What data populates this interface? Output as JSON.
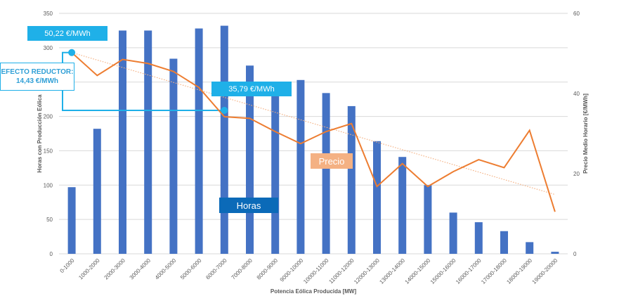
{
  "chart_data": {
    "type": "bar+line",
    "categories": [
      "0-1000",
      "1000-2000",
      "2000-3000",
      "3000-4000",
      "4000-5000",
      "5000-6000",
      "6000-7000",
      "7000-8000",
      "8000-9000",
      "9000-10000",
      "10000-11000",
      "11000-12000",
      "12000-13000",
      "13000-14000",
      "14000-15000",
      "15000-16000",
      "16000-17000",
      "17000-18000",
      "18000-19000",
      "19000-20000"
    ],
    "series": [
      {
        "name": "Horas",
        "axis": "left",
        "type": "bar",
        "color": "#4472c4",
        "values": [
          97,
          182,
          325,
          325,
          284,
          328,
          332,
          274,
          240,
          253,
          234,
          215,
          164,
          141,
          100,
          60,
          46,
          33,
          17,
          3
        ]
      },
      {
        "name": "Precio",
        "axis": "right",
        "type": "line",
        "color": "#ed7d31",
        "values": [
          50.22,
          44.5,
          48.5,
          47.5,
          45.5,
          41.5,
          34.2,
          33.8,
          30.5,
          27.5,
          30.5,
          32.5,
          16.8,
          22.5,
          16.8,
          20.5,
          23.5,
          21.5,
          30.8,
          10.5
        ]
      }
    ],
    "trendline": {
      "series": "Precio",
      "color": "#f4b183",
      "style": "dotted",
      "from": 50.22,
      "to": 14.8
    },
    "xlabel": "Potencia Eólica Producida [MW]",
    "ylabel": "Horas con Producción Eólica",
    "ylabel_right": "Precio Medio Horario [€/MWh]",
    "ylim": [
      0,
      350
    ],
    "yticks": [
      0,
      50,
      100,
      150,
      200,
      250,
      300,
      350
    ],
    "ylim_right": [
      0,
      60
    ],
    "yticks_right": [
      0,
      20,
      40,
      60
    ],
    "grid": true
  },
  "annotations": {
    "price_high": "50,22 €/MWh",
    "price_low": "35,79 €/MWh",
    "reduction_line1": "EFECTO REDUCTOR:",
    "reduction_line2": "14,43 €/MWh",
    "precio_label": "Precio",
    "horas_label": "Horas"
  },
  "colors": {
    "bar": "#4472c4",
    "line": "#ed7d31",
    "grid": "#d9d9d9",
    "callout_blue": "#1fb0e8",
    "callout_precio": "#f4b183",
    "callout_horas": "#0b6ab8"
  }
}
